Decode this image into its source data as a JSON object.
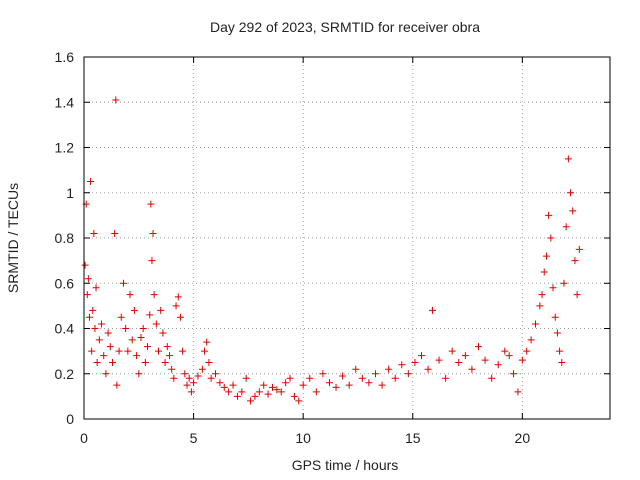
{
  "colors": {
    "series": "#e00000",
    "grid": "#a0a0a0",
    "axis": "#000000",
    "text": "#222222"
  },
  "chart_data": {
    "type": "scatter",
    "marker": "plus",
    "title": "Day 292 of 2023, SRMTID for receiver obra",
    "xlabel": "GPS time / hours",
    "ylabel": "SRMTID / TECUs",
    "xlim": [
      0,
      24
    ],
    "ylim": [
      0,
      1.6
    ],
    "xticks": [
      0,
      5,
      10,
      15,
      20
    ],
    "xtick_labels": [
      "0",
      "5",
      "10",
      "15",
      "20"
    ],
    "yticks": [
      0,
      0.2,
      0.4,
      0.6,
      0.8,
      1.0,
      1.2,
      1.4,
      1.6
    ],
    "ytick_labels": [
      "0",
      "0.2",
      "0.4",
      "0.6",
      "0.8",
      "1",
      "1.2",
      "1.4",
      "1.6"
    ],
    "grid": true,
    "series": [
      {
        "name": "SRMTID",
        "x": [
          0.05,
          0.1,
          0.15,
          0.2,
          0.25,
          0.3,
          0.35,
          0.4,
          0.45,
          0.5,
          0.55,
          0.6,
          0.7,
          0.8,
          0.9,
          1.0,
          1.1,
          1.2,
          1.3,
          1.4,
          1.45,
          1.5,
          1.6,
          1.7,
          1.8,
          1.9,
          2.0,
          2.1,
          2.2,
          2.3,
          2.4,
          2.5,
          2.6,
          2.7,
          2.8,
          2.9,
          3.0,
          3.05,
          3.1,
          3.15,
          3.2,
          3.3,
          3.4,
          3.5,
          3.6,
          3.7,
          3.8,
          3.9,
          4.0,
          4.1,
          4.2,
          4.3,
          4.4,
          4.5,
          4.6,
          4.7,
          4.8,
          4.9,
          5.0,
          5.2,
          5.4,
          5.5,
          5.6,
          5.7,
          5.8,
          6.0,
          6.2,
          6.4,
          6.6,
          6.8,
          7.0,
          7.2,
          7.4,
          7.6,
          7.8,
          8.0,
          8.2,
          8.4,
          8.6,
          8.8,
          9.0,
          9.2,
          9.4,
          9.6,
          9.8,
          10.0,
          10.3,
          10.6,
          10.9,
          11.2,
          11.5,
          11.8,
          12.1,
          12.4,
          12.7,
          13.0,
          13.3,
          13.6,
          13.9,
          14.2,
          14.5,
          14.8,
          15.1,
          15.4,
          15.7,
          15.9,
          16.2,
          16.5,
          16.8,
          17.1,
          17.4,
          17.7,
          18.0,
          18.3,
          18.6,
          18.9,
          19.2,
          19.4,
          19.6,
          19.8,
          20.0,
          20.2,
          20.4,
          20.6,
          20.8,
          20.9,
          21.0,
          21.1,
          21.2,
          21.3,
          21.4,
          21.5,
          21.6,
          21.7,
          21.8,
          21.9,
          22.0,
          22.1,
          22.2,
          22.3,
          22.4,
          22.5,
          22.6
        ],
        "y": [
          0.68,
          0.95,
          0.55,
          0.62,
          0.45,
          1.05,
          0.3,
          0.48,
          0.82,
          0.4,
          0.58,
          0.25,
          0.35,
          0.42,
          0.28,
          0.2,
          0.38,
          0.32,
          0.25,
          0.82,
          1.41,
          0.15,
          0.3,
          0.45,
          0.6,
          0.4,
          0.3,
          0.55,
          0.35,
          0.48,
          0.28,
          0.2,
          0.36,
          0.4,
          0.25,
          0.32,
          0.46,
          0.95,
          0.7,
          0.82,
          0.55,
          0.42,
          0.3,
          0.48,
          0.38,
          0.25,
          0.32,
          0.28,
          0.22,
          0.18,
          0.5,
          0.54,
          0.45,
          0.3,
          0.2,
          0.15,
          0.18,
          0.12,
          0.16,
          0.19,
          0.22,
          0.3,
          0.34,
          0.25,
          0.18,
          0.2,
          0.16,
          0.14,
          0.12,
          0.15,
          0.1,
          0.12,
          0.18,
          0.08,
          0.1,
          0.12,
          0.15,
          0.11,
          0.14,
          0.13,
          0.12,
          0.16,
          0.18,
          0.1,
          0.08,
          0.15,
          0.18,
          0.12,
          0.2,
          0.16,
          0.14,
          0.19,
          0.15,
          0.22,
          0.18,
          0.16,
          0.2,
          0.15,
          0.22,
          0.18,
          0.24,
          0.2,
          0.25,
          0.28,
          0.22,
          0.48,
          0.26,
          0.18,
          0.3,
          0.25,
          0.28,
          0.22,
          0.32,
          0.26,
          0.18,
          0.24,
          0.3,
          0.28,
          0.2,
          0.12,
          0.26,
          0.3,
          0.35,
          0.42,
          0.5,
          0.55,
          0.65,
          0.72,
          0.9,
          0.8,
          0.58,
          0.45,
          0.38,
          0.3,
          0.25,
          0.6,
          0.85,
          1.15,
          1.0,
          0.92,
          0.7,
          0.55,
          0.75
        ],
        "color": "#e00000"
      }
    ]
  }
}
